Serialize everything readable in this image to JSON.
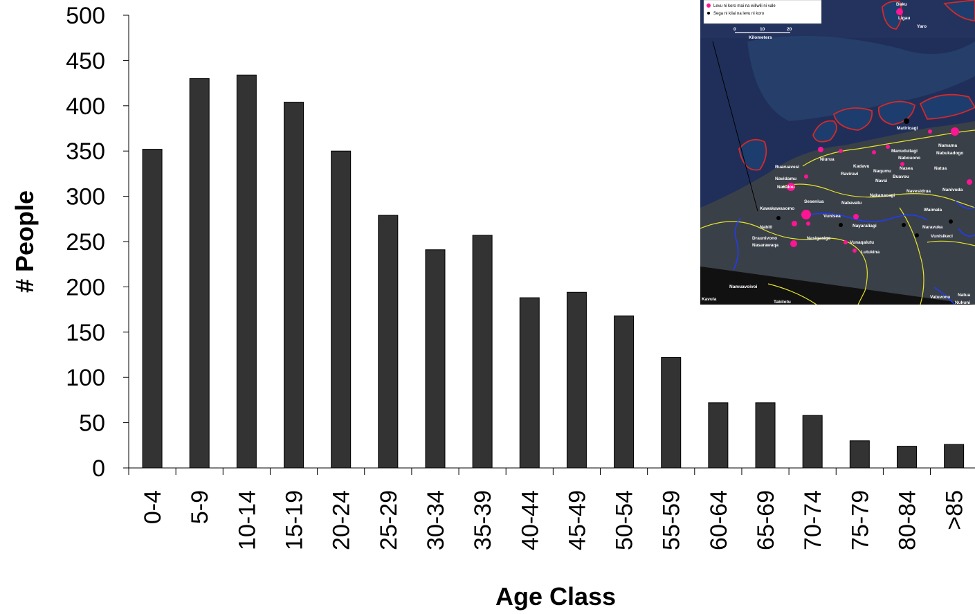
{
  "chart_data": {
    "type": "bar",
    "categories": [
      "0-4",
      "5-9",
      "10-14",
      "15-19",
      "20-24",
      "25-29",
      "30-34",
      "35-39",
      "40-44",
      "45-49",
      "50-54",
      "55-59",
      "60-64",
      "65-69",
      "70-74",
      "75-79",
      "80-84",
      ">85"
    ],
    "values": [
      352,
      430,
      434,
      404,
      350,
      279,
      241,
      257,
      188,
      194,
      168,
      122,
      72,
      72,
      58,
      30,
      24,
      26
    ],
    "xlabel": "Age Class",
    "ylabel": "# People",
    "ylim": [
      0,
      500
    ],
    "yticks": [
      0,
      50,
      100,
      150,
      200,
      250,
      300,
      350,
      400,
      450,
      500
    ],
    "bar_color": "#333333",
    "grid": false,
    "legend": "none"
  },
  "map_inset": {
    "legend_items": [
      "Levu ni koro mai na wiliwili ni vale",
      "Sega ni kilai na levu ni koro"
    ],
    "scale_ticks": [
      "0",
      "10",
      "20"
    ],
    "scale_unit": "Kilometers",
    "place_names": [
      "Daku",
      "Ligau",
      "Yaro",
      "Matiricagi",
      "Namama",
      "Nabukadogo",
      "Niurua",
      "Kadavu",
      "Manuduilagi",
      "Nabouono",
      "Ruaruavesi",
      "Raviravi",
      "Naqumu",
      "Nasea",
      "Navidamu",
      "Navsi",
      "Buavou",
      "Natua",
      "Nakalou",
      "Nakanacagi",
      "Navesidrua",
      "Nanivuda",
      "Seseniua",
      "Nabavatu",
      "Waimala",
      "Kawakawasomo",
      "Vunisea",
      "Nayaraliagi",
      "Naravuka",
      "Nabiti",
      "Nasigasige",
      "Vunisikeci",
      "Draunivono",
      "Vunaqalutu",
      "Nasarawaqa",
      "Lutukina",
      "Namuavoivoi",
      "Vatuvonu",
      "Kavula",
      "Tabilotu",
      "Natua",
      "Nukuni"
    ],
    "colors": {
      "sea": "#1f2f5a",
      "land": "#3a4048",
      "reef": "#d32a2a",
      "boundary": "#e8e628",
      "river": "#1f3cff",
      "village_pop": "#ff1493",
      "village_unknown": "#000000"
    }
  }
}
